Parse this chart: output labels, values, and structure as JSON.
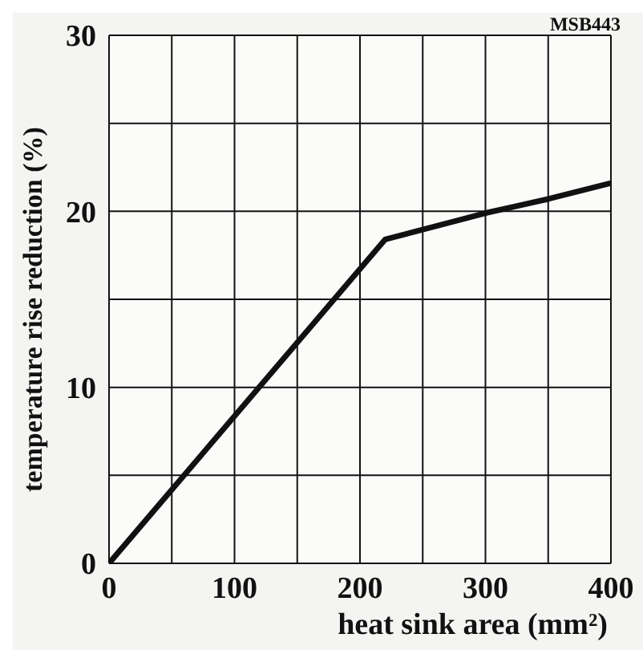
{
  "chart_data": {
    "type": "line",
    "xlabel": "heat sink area (mm²)",
    "ylabel": "temperature rise reduction (%)",
    "annotations": [
      "MSB443"
    ],
    "x": [
      0,
      220,
      300,
      350,
      400
    ],
    "series": [
      {
        "color": "#111111",
        "values": [
          0,
          18.4,
          19.9,
          20.7,
          21.6
        ]
      }
    ],
    "xlim": [
      0,
      400
    ],
    "xticks": [
      0,
      {
        "value": 50,
        "label": null
      },
      100,
      {
        "value": 150,
        "label": null
      },
      200,
      {
        "value": 250,
        "label": null
      },
      300,
      {
        "value": 350,
        "label": null
      },
      400
    ],
    "ylim": [
      0,
      30
    ],
    "yticks": [
      0,
      {
        "value": 5,
        "label": null
      },
      10,
      {
        "value": 15,
        "label": null
      },
      20,
      {
        "value": 25,
        "label": null
      },
      30
    ],
    "grid": true,
    "marker": "none",
    "line_style": "solid",
    "legend": false
  }
}
